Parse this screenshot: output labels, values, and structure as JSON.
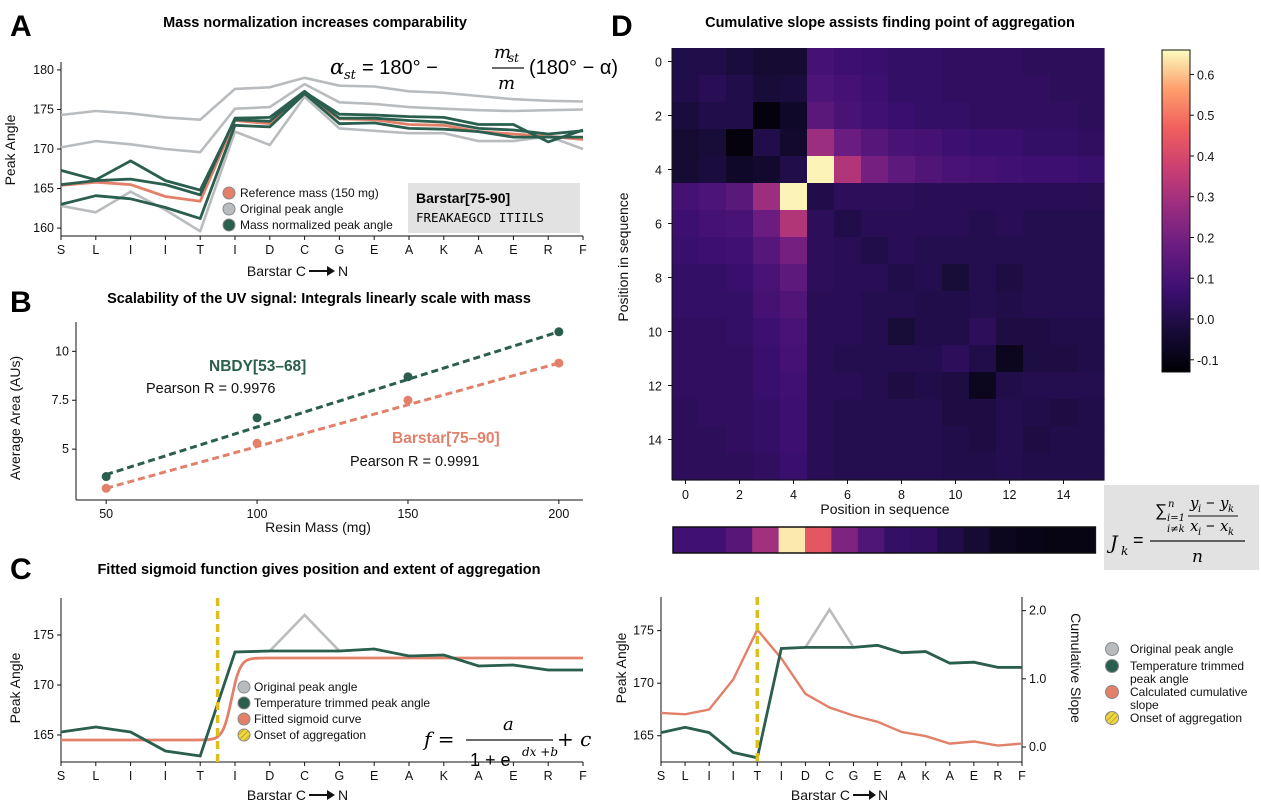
{
  "panels": {
    "A": {
      "label": "A",
      "title": "Mass normalization increases comparability",
      "ylabel": "Peak Angle",
      "xlabel": "Barstar C",
      "xlabel_suffix": "N",
      "formula": {
        "lhs": "α",
        "lhs_sub": "st",
        "mid": "= 180° −",
        "num": "m",
        "num_sub": "st",
        "den": "m",
        "rhs": "(180° − α)"
      },
      "legend": [
        "Reference mass (150 mg)",
        "Original peak angle",
        "Mass normalized peak angle"
      ],
      "seq_box": {
        "title": "Barstar[75-90]",
        "sequence": "FREAKAEGCD ITIILS"
      }
    },
    "B": {
      "label": "B",
      "title": "Scalability of the UV signal: Integrals linearly scale with mass",
      "ylabel": "Average Area (AUs)",
      "xlabel": "Resin Mass (mg)",
      "annot1_name": "NBDY[53–68]",
      "annot1_r": "Pearson R = 0.9976",
      "annot2_name": "Barstar[75–90]",
      "annot2_r": "Pearson R = 0.9991"
    },
    "C": {
      "label": "C",
      "title": "Fitted sigmoid function gives position and extent of aggregation",
      "ylabel": "Peak Angle",
      "xlabel": "Barstar C",
      "xlabel_suffix": "N",
      "legend": [
        "Original peak angle",
        "Temperature trimmed peak angle",
        "Fitted sigmoid curve",
        "Onset of aggregation"
      ],
      "formula": {
        "lhs": "f =",
        "num": "a",
        "den_a": "1 + e",
        "den_sup": "dx +b",
        "tail": "+ c"
      }
    },
    "D": {
      "label": "D",
      "title": "Cumulative slope assists finding point of aggregation",
      "ylabel": "Position in sequence",
      "xlabel": "Position in sequence",
      "formula": {
        "lhs": "J",
        "lhs_sub": "k",
        "sum": "∑",
        "sum_sup": "n",
        "sum_sub1": "i=1",
        "sum_sub2": "i≠k",
        "frac_num": "y",
        "frac_num_sub1": "i",
        "frac_num_sub2": "k",
        "frac_den": "x",
        "den": "n"
      }
    },
    "E": {
      "ylabel_left": "Peak Angle",
      "ylabel_right": "Cumulative Slope",
      "xlabel": "Barstar C",
      "xlabel_suffix": "N",
      "legend": [
        "Original peak angle",
        "Temperature trimmed",
        "peak angle",
        "Calculated cumulative",
        "slope",
        "Onset of aggregation"
      ]
    }
  },
  "colors": {
    "green": "#2a5e4e",
    "salmon": "#e2806a",
    "gray": "#b9bcbe",
    "gold": "#dcbf1c"
  },
  "chart_data": [
    {
      "id": "A",
      "type": "line",
      "categories": [
        "S",
        "L",
        "I",
        "I",
        "T",
        "I",
        "D",
        "C",
        "G",
        "E",
        "A",
        "K",
        "A",
        "E",
        "R",
        "F"
      ],
      "ylim": [
        159,
        181
      ],
      "yticks": [
        160,
        165,
        170,
        175,
        180
      ],
      "series": [
        {
          "name": "Reference mass (150 mg)",
          "color": "salmon",
          "values": [
            165.4,
            165.8,
            165.5,
            164.0,
            163.4,
            173.6,
            173.2,
            177.0,
            173.8,
            173.7,
            173.1,
            173.0,
            172.2,
            171.9,
            171.6,
            171.2
          ]
        },
        {
          "name": "Original peak angle",
          "color": "gray",
          "values": [
            174.3,
            174.8,
            174.5,
            174.0,
            173.7,
            177.6,
            177.8,
            179.0,
            178.0,
            177.9,
            177.3,
            177.1,
            176.7,
            176.3,
            176.1,
            176.0
          ]
        },
        {
          "color": "gray",
          "values": [
            170.2,
            171.0,
            170.6,
            170.0,
            169.6,
            175.1,
            175.3,
            178.2,
            175.9,
            175.7,
            175.3,
            175.1,
            174.9,
            174.8,
            174.9,
            175.0
          ]
        },
        {
          "color": "gray",
          "values": [
            162.8,
            162.0,
            164.6,
            162.3,
            159.6,
            172.2,
            170.5,
            176.6,
            172.6,
            172.3,
            172.0,
            172.0,
            171.0,
            171.0,
            171.6,
            170.0
          ]
        },
        {
          "name": "Mass normalized peak angle",
          "color": "green",
          "values": [
            167.3,
            166.1,
            168.5,
            166.0,
            164.8,
            173.7,
            173.5,
            177.2,
            174.4,
            174.3,
            174.1,
            174.0,
            173.1,
            173.1,
            170.9,
            172.4
          ]
        },
        {
          "color": "green",
          "values": [
            165.5,
            166.0,
            166.2,
            165.5,
            164.2,
            173.9,
            174.0,
            177.3,
            173.9,
            173.9,
            173.6,
            173.4,
            172.6,
            172.4,
            171.9,
            172.3
          ]
        },
        {
          "color": "green",
          "values": [
            163.0,
            164.1,
            163.7,
            162.6,
            161.2,
            173.0,
            172.8,
            177.0,
            173.2,
            173.3,
            172.6,
            172.5,
            172.2,
            171.5,
            171.5,
            171.5
          ]
        }
      ]
    },
    {
      "id": "B",
      "type": "scatter",
      "xlim": [
        40,
        208
      ],
      "ylim": [
        2.4,
        11.5
      ],
      "xticks": [
        50,
        100,
        150,
        200
      ],
      "yticks": [
        5,
        7.5,
        10
      ],
      "series": [
        {
          "name": "NBDY[53–68]",
          "color": "green",
          "x": [
            50,
            100,
            150,
            200
          ],
          "y": [
            3.6,
            6.6,
            8.7,
            11.0
          ],
          "fit": [
            3.7,
            11.0
          ]
        },
        {
          "name": "Barstar[75–90]",
          "color": "salmon",
          "x": [
            50,
            100,
            150,
            200
          ],
          "y": [
            3.0,
            5.3,
            7.5,
            9.4
          ],
          "fit": [
            3.0,
            9.4
          ]
        }
      ]
    },
    {
      "id": "C",
      "type": "line",
      "categories": [
        "S",
        "L",
        "I",
        "I",
        "T",
        "I",
        "D",
        "C",
        "G",
        "E",
        "A",
        "K",
        "A",
        "E",
        "R",
        "F"
      ],
      "ylim": [
        162.3,
        178.7
      ],
      "yticks": [
        165,
        170,
        175
      ],
      "onset_x": 4.5,
      "series": [
        {
          "name": "Original peak angle",
          "color": "gray",
          "values": [
            165.3,
            165.8,
            165.3,
            163.4,
            162.9,
            173.3,
            173.4,
            177.0,
            173.4,
            173.6,
            172.9,
            173.0,
            171.9,
            172.0,
            171.5,
            171.5
          ]
        },
        {
          "name": "Temperature trimmed peak angle",
          "color": "green",
          "values": [
            165.3,
            165.8,
            165.3,
            163.4,
            162.9,
            173.3,
            173.4,
            173.4,
            173.4,
            173.6,
            172.9,
            173.0,
            171.9,
            172.0,
            171.5,
            171.5
          ]
        },
        {
          "name": "Fitted sigmoid curve",
          "color": "salmon",
          "sigmoid": {
            "low": 164.5,
            "high": 172.7,
            "mid": 4.9,
            "steep": 8
          }
        }
      ]
    },
    {
      "id": "D",
      "type": "heatmap",
      "xticks": [
        0,
        2,
        4,
        6,
        8,
        10,
        12,
        14
      ],
      "yticks": [
        0,
        2,
        4,
        6,
        8,
        10,
        12,
        14
      ],
      "colorbar_range": [
        -0.13,
        0.66
      ],
      "colorbar_ticks": [
        -0.1,
        0.0,
        0.1,
        0.2,
        0.3,
        0.4,
        0.5,
        0.6
      ],
      "matrix": [
        [
          0.0,
          0.0,
          -0.02,
          -0.04,
          -0.04,
          0.09,
          0.07,
          0.06,
          0.05,
          0.05,
          0.04,
          0.04,
          0.04,
          0.03,
          0.03,
          0.03
        ],
        [
          0.0,
          0.02,
          0.0,
          -0.03,
          -0.02,
          0.11,
          0.09,
          0.07,
          0.05,
          0.05,
          0.04,
          0.04,
          0.04,
          0.04,
          0.03,
          0.03
        ],
        [
          -0.02,
          0.0,
          0.0,
          -0.11,
          -0.06,
          0.14,
          0.1,
          0.08,
          0.06,
          0.05,
          0.05,
          0.04,
          0.04,
          0.04,
          0.04,
          0.03
        ],
        [
          -0.04,
          -0.03,
          -0.11,
          0.0,
          -0.05,
          0.28,
          0.18,
          0.13,
          0.1,
          0.09,
          0.07,
          0.06,
          0.06,
          0.05,
          0.05,
          0.04
        ],
        [
          -0.04,
          -0.02,
          -0.06,
          -0.05,
          0.0,
          0.65,
          0.32,
          0.2,
          0.15,
          0.12,
          0.1,
          0.09,
          0.08,
          0.07,
          0.07,
          0.06
        ],
        [
          0.09,
          0.11,
          0.14,
          0.28,
          0.65,
          0.0,
          0.03,
          0.03,
          0.03,
          0.02,
          0.02,
          0.02,
          0.02,
          0.02,
          0.02,
          0.02
        ],
        [
          0.07,
          0.09,
          0.1,
          0.18,
          0.32,
          0.03,
          0.0,
          0.02,
          0.02,
          0.02,
          0.02,
          0.01,
          0.02,
          0.01,
          0.01,
          0.01
        ],
        [
          0.06,
          0.07,
          0.08,
          0.13,
          0.2,
          0.03,
          0.02,
          0.0,
          0.02,
          0.01,
          0.01,
          0.01,
          0.01,
          0.01,
          0.01,
          0.01
        ],
        [
          0.05,
          0.05,
          0.06,
          0.1,
          0.15,
          0.03,
          0.02,
          0.02,
          0.0,
          0.01,
          -0.03,
          0.01,
          -0.01,
          0.01,
          0.01,
          0.01
        ],
        [
          0.05,
          0.05,
          0.05,
          0.09,
          0.12,
          0.02,
          0.02,
          0.01,
          0.01,
          0.0,
          0.0,
          0.01,
          0.0,
          0.01,
          0.01,
          0.01
        ],
        [
          0.04,
          0.04,
          0.05,
          0.07,
          0.1,
          0.02,
          0.02,
          0.01,
          -0.03,
          0.0,
          0.0,
          0.03,
          -0.01,
          -0.01,
          0.0,
          0.0
        ],
        [
          0.04,
          0.04,
          0.04,
          0.06,
          0.09,
          0.02,
          0.01,
          0.01,
          0.01,
          0.01,
          0.03,
          0.0,
          -0.08,
          -0.01,
          -0.01,
          0.0
        ],
        [
          0.04,
          0.04,
          0.04,
          0.06,
          0.08,
          0.02,
          0.02,
          0.01,
          -0.01,
          0.0,
          -0.01,
          -0.08,
          0.0,
          0.01,
          0.01,
          0.01
        ],
        [
          0.03,
          0.04,
          0.04,
          0.05,
          0.07,
          0.02,
          0.01,
          0.01,
          0.01,
          0.01,
          -0.01,
          -0.01,
          0.01,
          0.0,
          -0.01,
          0.0
        ],
        [
          0.03,
          0.03,
          0.04,
          0.05,
          0.07,
          0.02,
          0.01,
          0.01,
          0.01,
          0.01,
          0.0,
          -0.01,
          0.01,
          -0.01,
          0.0,
          0.0
        ],
        [
          0.03,
          0.03,
          0.03,
          0.04,
          0.06,
          0.02,
          0.01,
          0.01,
          0.01,
          0.01,
          0.0,
          0.0,
          0.01,
          0.0,
          0.0,
          0.0
        ]
      ],
      "cumulative_strip": [
        0.08,
        0.08,
        0.13,
        0.29,
        0.64,
        0.44,
        0.22,
        0.12,
        0.05,
        0.04,
        0.0,
        -0.04,
        -0.08,
        -0.09,
        -0.1,
        -0.1
      ]
    },
    {
      "id": "E",
      "type": "line",
      "categories": [
        "S",
        "L",
        "I",
        "I",
        "T",
        "I",
        "D",
        "C",
        "G",
        "E",
        "A",
        "K",
        "A",
        "E",
        "R",
        "F"
      ],
      "ylim_left": [
        162.5,
        178.2
      ],
      "yticks_left": [
        165,
        170,
        175
      ],
      "ylim_right": [
        -0.22,
        2.2
      ],
      "yticks_right": [
        0.0,
        1.0,
        2.0
      ],
      "onset_x": 4,
      "series": [
        {
          "name": "Original peak angle",
          "color": "gray",
          "axis": "left",
          "values": [
            165.3,
            165.8,
            165.3,
            163.4,
            162.9,
            173.3,
            173.4,
            177.0,
            173.4,
            173.6,
            172.9,
            173.0,
            171.9,
            172.0,
            171.5,
            171.5
          ]
        },
        {
          "name": "Temperature trimmed peak angle",
          "color": "green",
          "axis": "left",
          "values": [
            165.3,
            165.8,
            165.3,
            163.4,
            162.9,
            173.3,
            173.4,
            173.4,
            173.4,
            173.6,
            172.9,
            173.0,
            171.9,
            172.0,
            171.5,
            171.5
          ]
        },
        {
          "name": "Calculated cumulative slope",
          "color": "salmon",
          "axis": "right",
          "values": [
            0.5,
            0.48,
            0.55,
            0.99,
            1.72,
            1.3,
            0.78,
            0.58,
            0.46,
            0.37,
            0.22,
            0.16,
            0.05,
            0.08,
            0.02,
            0.05
          ]
        }
      ]
    }
  ]
}
